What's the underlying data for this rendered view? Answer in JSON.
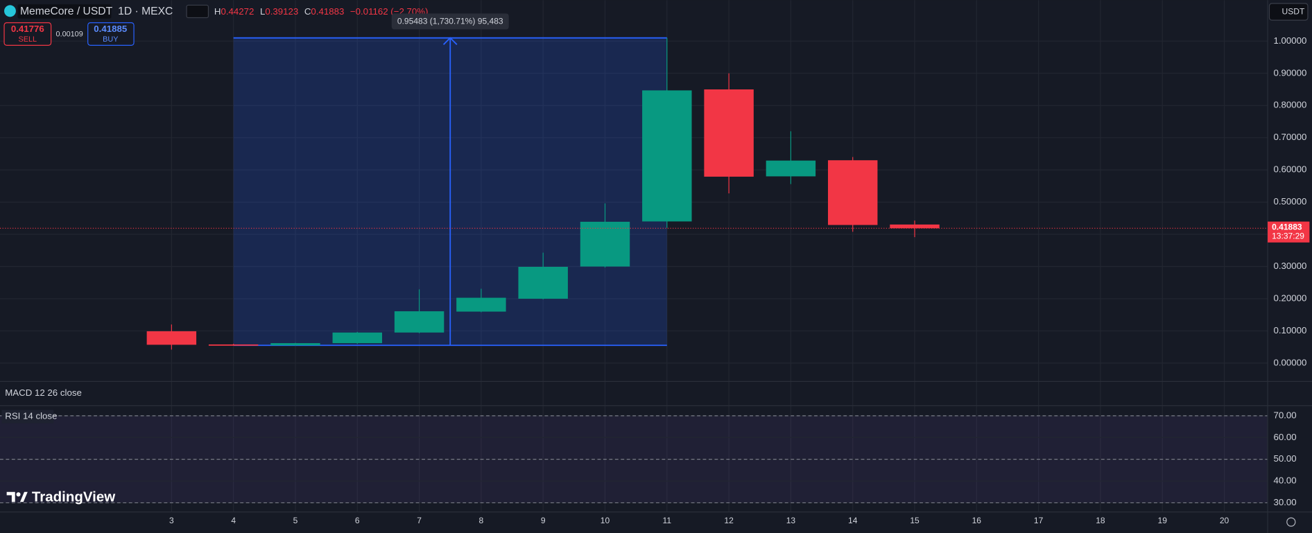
{
  "header": {
    "symbol": "MemeCore / USDT",
    "interval": "1D · MEXC",
    "high_label": "H",
    "low_label": "L",
    "close_label": "C",
    "change": "−0.01162 (−2.70%)",
    "currency": "USDT"
  },
  "trade": {
    "sell_price": 0.41776,
    "sell_label": "SELL",
    "spread": 0.00109,
    "buy_price": 0.41885,
    "buy_label": "BUY"
  },
  "macd_pane": {
    "title": "MACD 12 26 close"
  },
  "brand": "TradingView",
  "chart_data": [
    {
      "type": "candlestick",
      "x": [
        3,
        4,
        5,
        6,
        7,
        8,
        9,
        10,
        11,
        12,
        13,
        14,
        15
      ],
      "open": [
        0.099,
        0.058,
        0.055,
        0.062,
        0.095,
        0.16,
        0.2,
        0.3,
        0.44,
        0.85,
        0.58,
        0.63,
        0.43045
      ],
      "high": [
        0.12,
        0.06,
        0.063,
        0.097,
        0.229,
        0.231,
        0.343,
        0.496,
        1.01,
        0.9,
        0.72,
        0.64,
        0.44272
      ],
      "low": [
        0.042,
        0.054,
        0.054,
        0.06,
        0.093,
        0.158,
        0.198,
        0.297,
        0.42,
        0.527,
        0.556,
        0.408,
        0.39123
      ],
      "close": [
        0.057,
        0.055,
        0.062,
        0.095,
        0.161,
        0.203,
        0.299,
        0.439,
        0.847,
        0.579,
        0.629,
        0.429,
        0.41883
      ],
      "up_color": "#089981",
      "down_color": "#f23645",
      "xlim": [
        0.23,
        20.7
      ],
      "xticks": [
        3,
        4,
        5,
        6,
        7,
        8,
        9,
        10,
        11,
        12,
        13,
        14,
        15,
        16,
        17,
        18,
        19,
        20
      ],
      "ylim": [
        -0.055,
        1.1
      ],
      "yticks": [
        {
          "value": 0,
          "label": "0.00000"
        },
        {
          "value": 0.1,
          "label": "0.10000"
        },
        {
          "value": 0.2,
          "label": "0.20000"
        },
        {
          "value": 0.3,
          "label": "0.30000"
        },
        {
          "value": 0.4,
          "label": "0.40000"
        },
        {
          "value": 0.5,
          "label": "0.50000"
        },
        {
          "value": 0.6,
          "label": "0.60000"
        },
        {
          "value": 0.7,
          "label": "0.70000"
        },
        {
          "value": 0.8,
          "label": "0.80000"
        },
        {
          "value": 0.9,
          "label": "0.90000"
        },
        {
          "value": 1,
          "label": "1.00000"
        }
      ],
      "grid": true,
      "countdown": "13:37:29",
      "measure": {
        "x": [
          4,
          11
        ],
        "y": [
          0.05517,
          1.01
        ],
        "label": "0.95483 (1,730.71%) 95,483",
        "color": "#2962ff"
      }
    },
    {
      "type": "line",
      "title": "RSI 14 close",
      "series": [],
      "ylim": [
        25.8,
        74.6
      ],
      "yticks": [
        {
          "value": 30,
          "label": "30.00"
        },
        {
          "value": 40,
          "label": "40.00"
        },
        {
          "value": 50,
          "label": "50.00"
        },
        {
          "value": 60,
          "label": "60.00"
        },
        {
          "value": 70,
          "label": "70.00"
        }
      ],
      "band": [
        30,
        70
      ],
      "middle": 50
    }
  ]
}
